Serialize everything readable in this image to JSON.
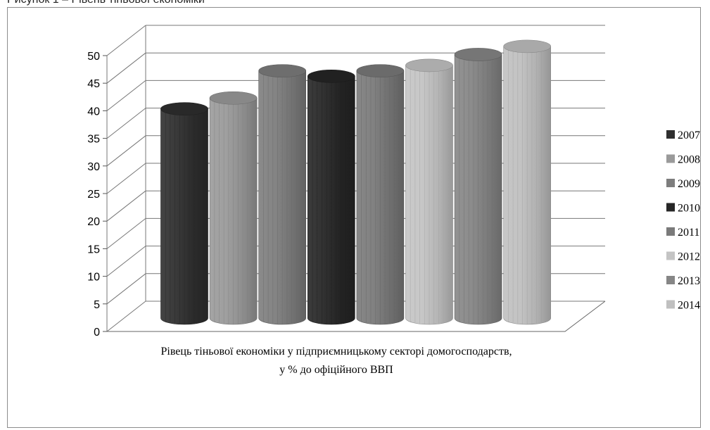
{
  "top_text": "Рисунок 1 – Рівень тіньової економіки",
  "chart_data": {
    "type": "bar",
    "style": "3d-cylinder",
    "categories": [
      "2007",
      "2008",
      "2009",
      "2010",
      "2011",
      "2012",
      "2013",
      "2014"
    ],
    "series": [
      {
        "name": "2007",
        "value": 38.5,
        "color": "#2f2f2f"
      },
      {
        "name": "2008",
        "value": 40.5,
        "color": "#9a9a9a"
      },
      {
        "name": "2009",
        "value": 45.5,
        "color": "#7d7d7d"
      },
      {
        "name": "2010",
        "value": 44.5,
        "color": "#262626"
      },
      {
        "name": "2011",
        "value": 45.5,
        "color": "#7a7a7a"
      },
      {
        "name": "2012",
        "value": 46.5,
        "color": "#c4c4c4"
      },
      {
        "name": "2013",
        "value": 48.5,
        "color": "#868686"
      },
      {
        "name": "2014",
        "value": 50.0,
        "color": "#c0c0c0"
      }
    ],
    "ylim": [
      0,
      50
    ],
    "yticks": [
      0,
      5,
      10,
      15,
      20,
      25,
      30,
      35,
      40,
      45,
      50
    ],
    "grid": true,
    "legend_position": "right",
    "xlabel_lines": [
      "Рівець тіньової економіки у підприємницькому секторі домогосподарств,",
      "у % до офіційного ВВП"
    ],
    "title": "",
    "ylabel": ""
  }
}
